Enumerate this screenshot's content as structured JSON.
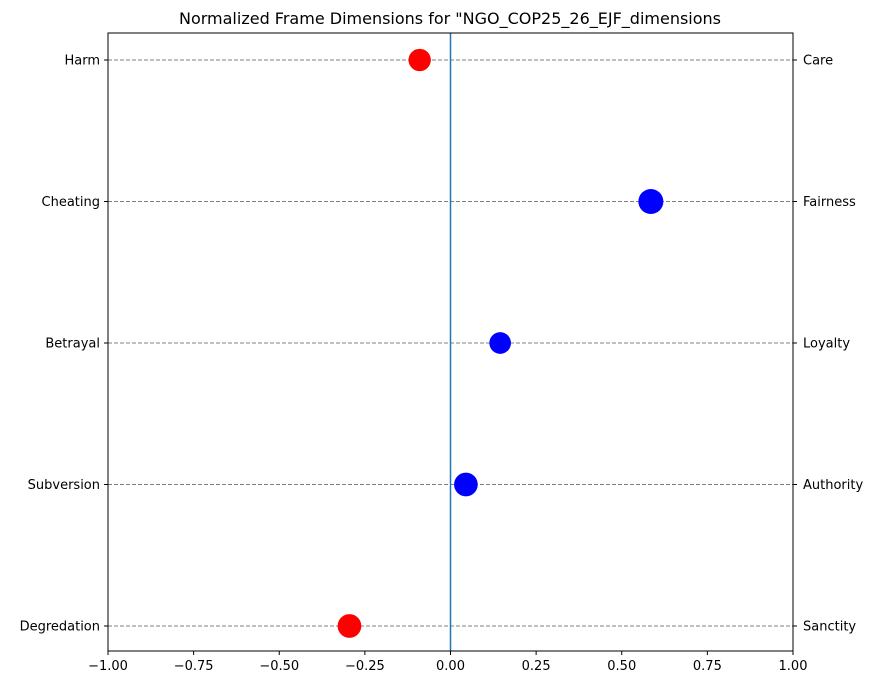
{
  "chart_data": {
    "type": "scatter",
    "title": "Normalized Frame Dimensions for \"NGO_COP25_26_EJF_dimensions",
    "xlim": [
      -1.0,
      1.0
    ],
    "x_ticks": [
      -1.0,
      -0.75,
      -0.5,
      -0.25,
      0.0,
      0.25,
      0.5,
      0.75,
      1.0
    ],
    "x_tick_labels": [
      "−1.00",
      "−0.75",
      "−0.50",
      "−0.25",
      "0.00",
      "0.25",
      "0.50",
      "0.75",
      "1.00"
    ],
    "left_labels": [
      "Harm",
      "Cheating",
      "Betrayal",
      "Subversion",
      "Degredation"
    ],
    "right_labels": [
      "Care",
      "Fairness",
      "Loyalty",
      "Authority",
      "Sanctity"
    ],
    "points": [
      {
        "left": "Harm",
        "right": "Care",
        "value": -0.09,
        "size": 0.8,
        "color": "#ff0000"
      },
      {
        "left": "Cheating",
        "right": "Fairness",
        "value": 0.585,
        "size": 1.0,
        "color": "#0000ff"
      },
      {
        "left": "Betrayal",
        "right": "Loyalty",
        "value": 0.145,
        "size": 0.75,
        "color": "#0000ff"
      },
      {
        "left": "Subversion",
        "right": "Authority",
        "value": 0.045,
        "size": 0.9,
        "color": "#0000ff"
      },
      {
        "left": "Degredation",
        "right": "Sanctity",
        "value": -0.295,
        "size": 0.9,
        "color": "#ff0000"
      }
    ],
    "zero_line_color": "#1f77b4",
    "grid": "horizontal dashed",
    "legend": "none"
  }
}
